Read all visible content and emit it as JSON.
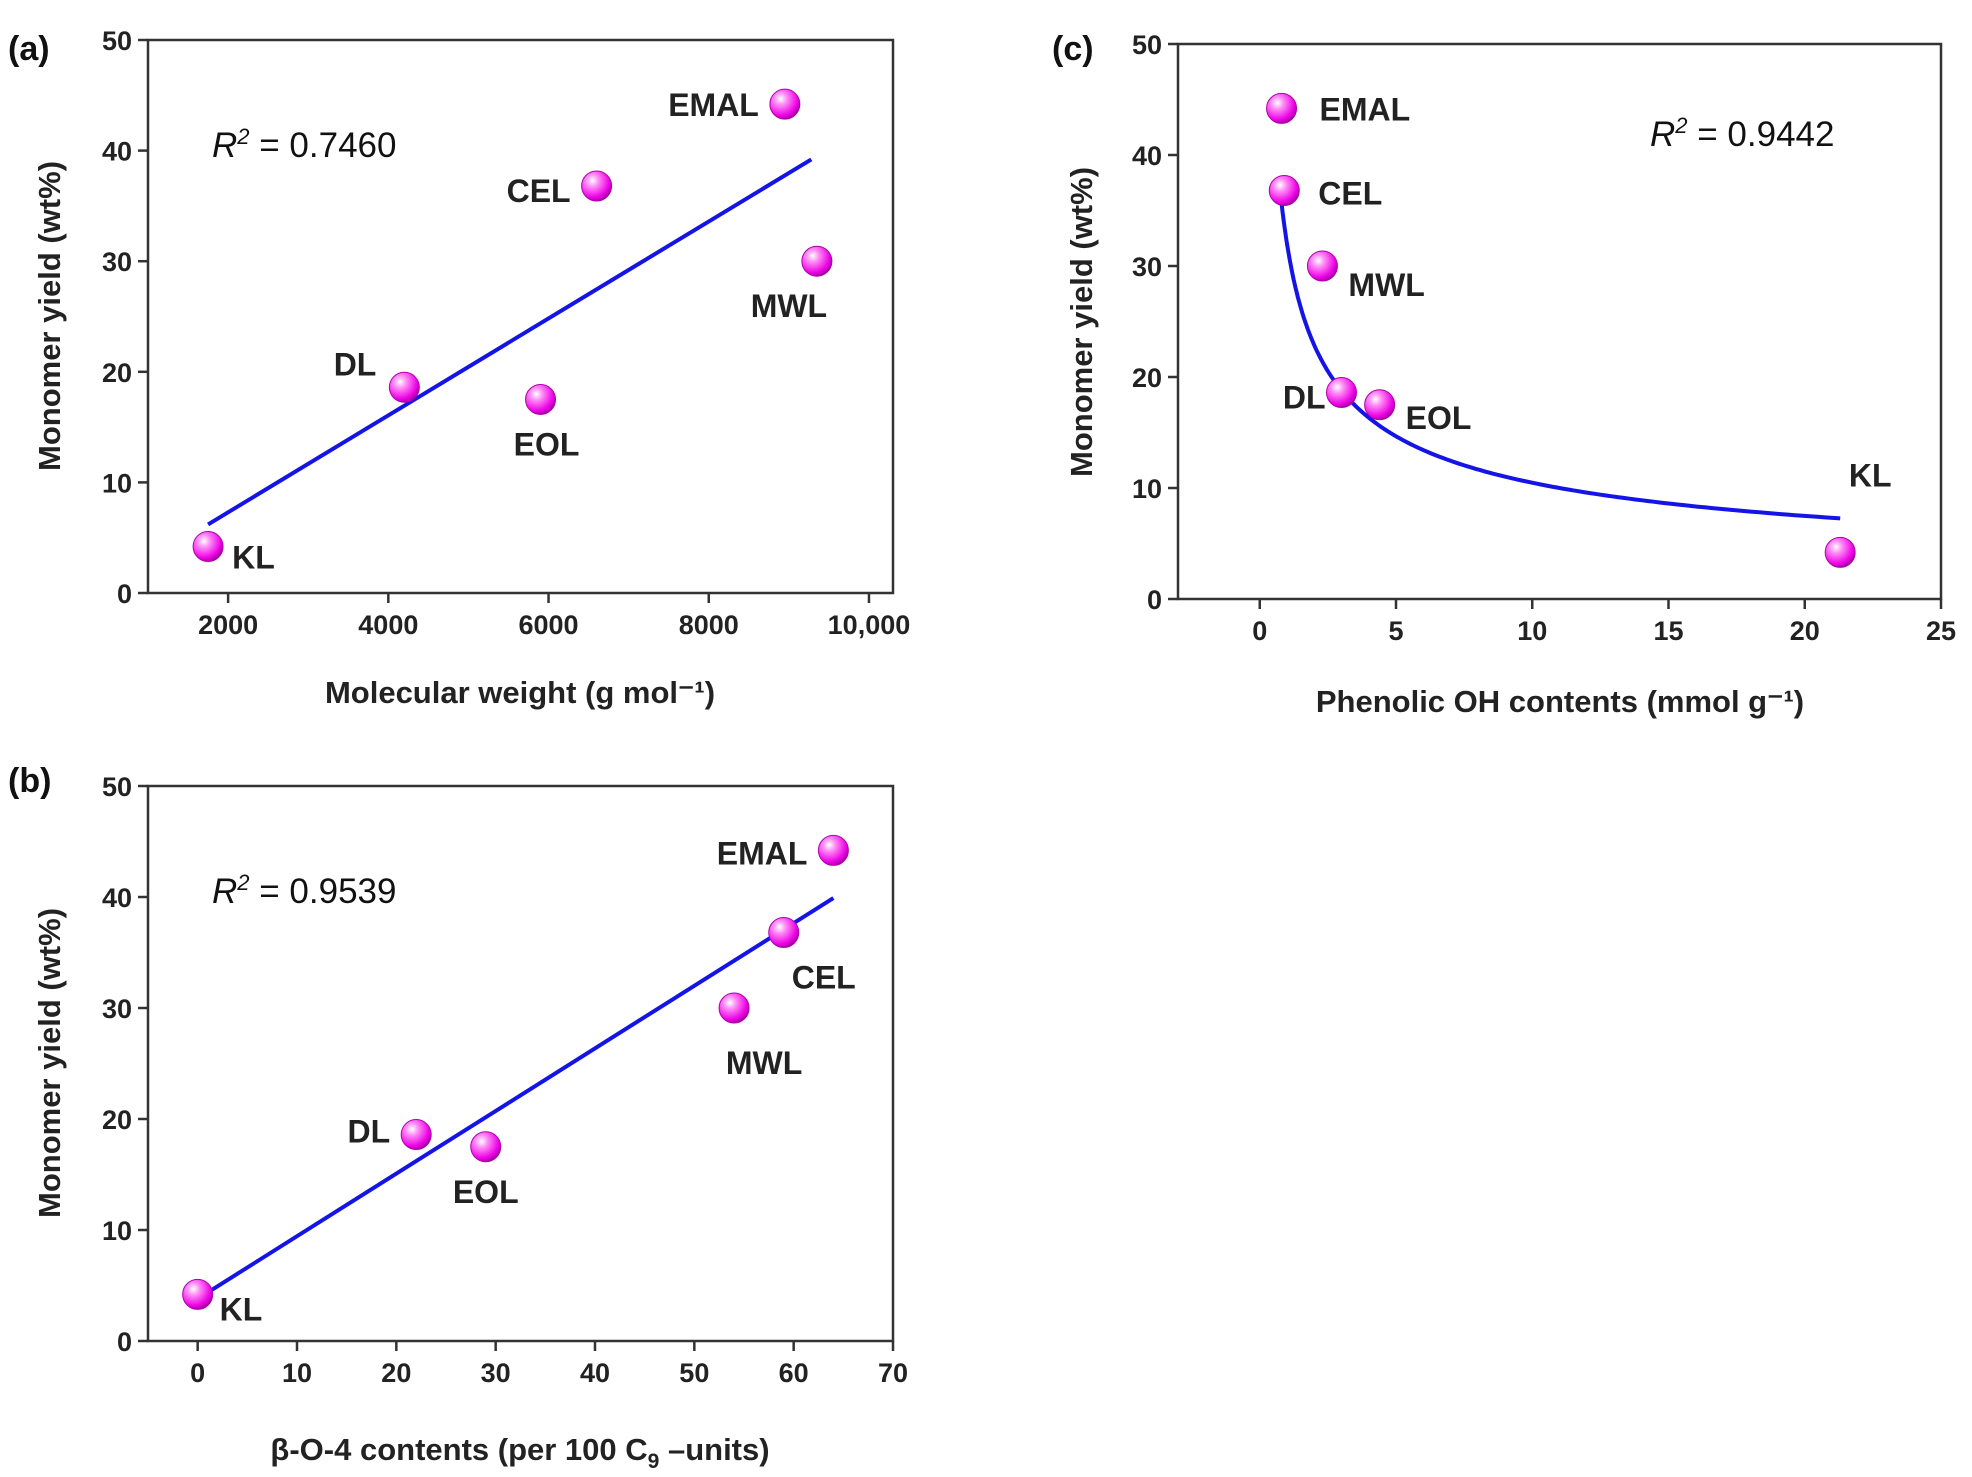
{
  "chart_data": [
    {
      "type": "scatter",
      "panel": "(a)",
      "xlabel": "Molecular weight (g mol⁻¹)",
      "ylabel": "Monomer yield (wt%)",
      "xlim": [
        1000,
        10300
      ],
      "ylim": [
        0,
        50
      ],
      "xticks": [
        2000,
        4000,
        6000,
        8000,
        10000
      ],
      "xtick_labels": [
        "2000",
        "4000",
        "6000",
        "8000",
        "10,000"
      ],
      "yticks": [
        0,
        10,
        20,
        30,
        40,
        50
      ],
      "r2_label": "R",
      "r2_sup": "2",
      "r2_value": " = 0.7460",
      "fit": {
        "type": "linear",
        "x": [
          1750,
          9280
        ],
        "y": [
          6.2,
          39.2
        ]
      },
      "points": [
        {
          "label": "KL",
          "x": 1750,
          "y": 4.2
        },
        {
          "label": "DL",
          "x": 4200,
          "y": 18.6
        },
        {
          "label": "EOL",
          "x": 5900,
          "y": 17.5
        },
        {
          "label": "CEL",
          "x": 6600,
          "y": 36.8
        },
        {
          "label": "EMAL",
          "x": 8950,
          "y": 44.2
        },
        {
          "label": "MWL",
          "x": 9350,
          "y": 30.0
        }
      ]
    },
    {
      "type": "scatter",
      "panel": "(b)",
      "xlabel_parts": [
        "β-O-4 contents (per 100 C",
        "9",
        " –units)"
      ],
      "ylabel": "Monomer yield (wt%)",
      "xlim": [
        -5,
        70
      ],
      "ylim": [
        0,
        50
      ],
      "xticks": [
        0,
        10,
        20,
        30,
        40,
        50,
        60,
        70
      ],
      "xtick_labels": [
        "0",
        "10",
        "20",
        "30",
        "40",
        "50",
        "60",
        "70"
      ],
      "yticks": [
        0,
        10,
        20,
        30,
        40,
        50
      ],
      "r2_label": "R",
      "r2_sup": "2",
      "r2_value": " = 0.9539",
      "fit": {
        "type": "linear",
        "x": [
          0,
          64
        ],
        "y": [
          3.8,
          39.9
        ]
      },
      "points": [
        {
          "label": "KL",
          "x": 0,
          "y": 4.2
        },
        {
          "label": "DL",
          "x": 22,
          "y": 18.6
        },
        {
          "label": "EOL",
          "x": 29,
          "y": 17.5
        },
        {
          "label": "MWL",
          "x": 54,
          "y": 30.0
        },
        {
          "label": "CEL",
          "x": 59,
          "y": 36.8
        },
        {
          "label": "EMAL",
          "x": 64,
          "y": 44.2
        }
      ]
    },
    {
      "type": "scatter",
      "panel": "(c)",
      "xlabel": "Phenolic OH contents (mmol g⁻¹)",
      "ylabel": "Monomer yield (wt%)",
      "xlim": [
        -3,
        25
      ],
      "ylim": [
        0,
        50
      ],
      "xticks": [
        0,
        5,
        10,
        15,
        20,
        25
      ],
      "xtick_labels": [
        "0",
        "5",
        "10",
        "15",
        "20",
        "25"
      ],
      "yticks": [
        10,
        20,
        30,
        40,
        50
      ],
      "r2_label": "R",
      "r2_sup": "2",
      "r2_value": " = 0.9442",
      "fit": {
        "type": "power",
        "x_range": [
          0.8,
          21.3
        ],
        "a": 32.0,
        "b": -0.485
      },
      "points": [
        {
          "label": "EMAL",
          "x": 0.8,
          "y": 44.2
        },
        {
          "label": "CEL",
          "x": 0.9,
          "y": 36.8
        },
        {
          "label": "MWL",
          "x": 2.3,
          "y": 30.0
        },
        {
          "label": "DL",
          "x": 3.0,
          "y": 18.6
        },
        {
          "label": "EOL",
          "x": 4.4,
          "y": 17.5
        },
        {
          "label": "KL",
          "x": 21.3,
          "y": 4.2
        }
      ]
    }
  ]
}
